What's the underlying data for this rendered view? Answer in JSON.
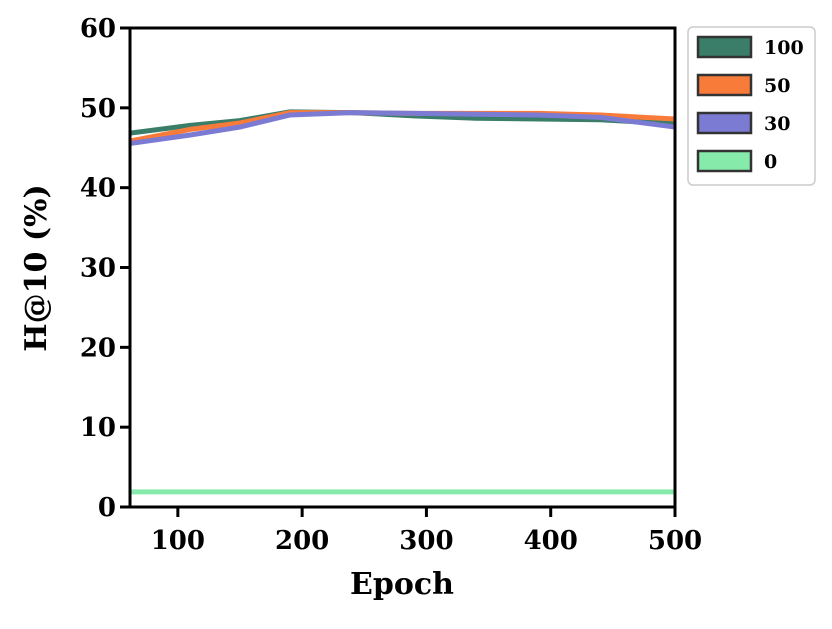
{
  "chart_data": {
    "type": "line",
    "x_label": "Epoch",
    "y_label": "H@10 (%)",
    "x": [
      60,
      110,
      150,
      190,
      240,
      290,
      340,
      390,
      440,
      500
    ],
    "series": [
      {
        "name": "100",
        "color": "#3a7d68",
        "values": [
          46.8,
          47.8,
          48.4,
          49.5,
          49.4,
          49.0,
          48.7,
          48.6,
          48.5,
          48.0
        ]
      },
      {
        "name": "50",
        "color": "#f97b3a",
        "values": [
          45.8,
          47.3,
          48.1,
          49.4,
          49.4,
          49.3,
          49.3,
          49.3,
          49.1,
          48.6
        ]
      },
      {
        "name": "30",
        "color": "#7b7bd4",
        "values": [
          45.5,
          46.6,
          47.6,
          49.1,
          49.4,
          49.3,
          49.2,
          49.1,
          48.8,
          47.6
        ]
      },
      {
        "name": "0",
        "color": "#86eaaa",
        "values": [
          1.9,
          1.9,
          1.9,
          1.9,
          1.9,
          1.9,
          1.9,
          1.9,
          1.9,
          1.9
        ]
      }
    ],
    "xlim": [
      61.5,
      500
    ],
    "xticks": [
      100,
      200,
      300,
      400,
      500
    ],
    "ylim": [
      0,
      60
    ],
    "yticks": [
      0,
      10,
      20,
      30,
      40,
      50,
      60
    ],
    "legend": "outside-upper-right"
  }
}
